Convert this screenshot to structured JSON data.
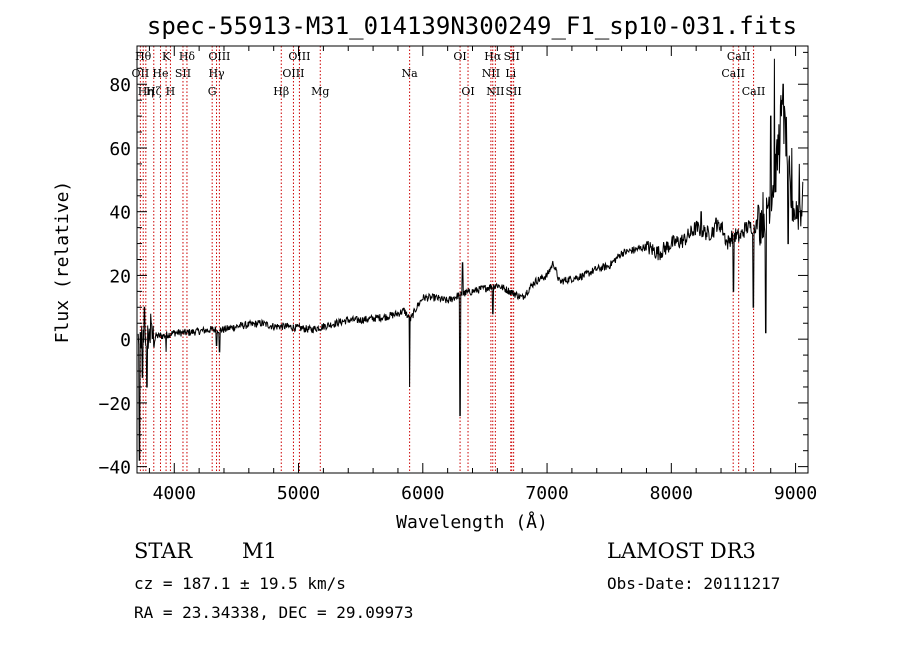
{
  "chart_data": {
    "type": "line",
    "title": "spec-55913-M31_014139N300249_F1_sp10-031.fits",
    "xlabel": "Wavelength (Å)",
    "ylabel": "Flux (relative)",
    "xlim": [
      3700,
      9100
    ],
    "ylim": [
      -42,
      92
    ],
    "xticks": [
      4000,
      5000,
      6000,
      7000,
      8000,
      9000
    ],
    "yticks": [
      -40,
      -20,
      0,
      20,
      40,
      60,
      80
    ],
    "line_color": "#000000",
    "marker_color": "#cc0000",
    "lines": [
      {
        "label": "Hθ",
        "wave": 3750,
        "row": 0
      },
      {
        "label": "OII",
        "wave": 3727,
        "row": 1
      },
      {
        "label": "Hη",
        "wave": 3771,
        "row": 2
      },
      {
        "label": "He",
        "wave": 3889,
        "row": 1
      },
      {
        "label": "Hζ",
        "wave": 3835,
        "row": 2
      },
      {
        "label": "K",
        "wave": 3934,
        "row": 0
      },
      {
        "label": "H",
        "wave": 3969,
        "row": 2
      },
      {
        "label": "SII",
        "wave": 4070,
        "row": 1
      },
      {
        "label": "Hδ",
        "wave": 4102,
        "row": 0
      },
      {
        "label": "OIII",
        "wave": 4363,
        "row": 0
      },
      {
        "label": "Hγ",
        "wave": 4340,
        "row": 1
      },
      {
        "label": "G",
        "wave": 4305,
        "row": 2
      },
      {
        "label": "Hβ",
        "wave": 4861,
        "row": 2
      },
      {
        "label": "OIII",
        "wave": 5007,
        "row": 0
      },
      {
        "label": "OIII",
        "wave": 4959,
        "row": 1
      },
      {
        "label": "Mg",
        "wave": 5175,
        "row": 2
      },
      {
        "label": "Na",
        "wave": 5894,
        "row": 1
      },
      {
        "label": "OI",
        "wave": 6300,
        "row": 0
      },
      {
        "label": "OI",
        "wave": 6364,
        "row": 2
      },
      {
        "label": "Hα",
        "wave": 6563,
        "row": 0
      },
      {
        "label": "NII",
        "wave": 6548,
        "row": 1
      },
      {
        "label": "NII",
        "wave": 6584,
        "row": 2
      },
      {
        "label": "SII",
        "wave": 6716,
        "row": 0
      },
      {
        "label": "Li",
        "wave": 6708,
        "row": 1
      },
      {
        "label": "SII",
        "wave": 6731,
        "row": 2
      },
      {
        "label": "CaII",
        "wave": 8542,
        "row": 0
      },
      {
        "label": "CaII",
        "wave": 8498,
        "row": 1
      },
      {
        "label": "CaII",
        "wave": 8662,
        "row": 2
      }
    ],
    "spectrum_continuum": [
      [
        3700,
        0
      ],
      [
        3800,
        1
      ],
      [
        3900,
        1
      ],
      [
        4000,
        2
      ],
      [
        4100,
        2
      ],
      [
        4200,
        2.5
      ],
      [
        4300,
        3
      ],
      [
        4400,
        3
      ],
      [
        4500,
        4
      ],
      [
        4600,
        4.5
      ],
      [
        4700,
        5
      ],
      [
        4800,
        4
      ],
      [
        4900,
        4
      ],
      [
        5000,
        3.5
      ],
      [
        5100,
        3
      ],
      [
        5200,
        4
      ],
      [
        5300,
        5
      ],
      [
        5400,
        6
      ],
      [
        5500,
        6
      ],
      [
        5600,
        6.5
      ],
      [
        5700,
        7
      ],
      [
        5800,
        8
      ],
      [
        5850,
        9
      ],
      [
        5900,
        6
      ],
      [
        5950,
        10
      ],
      [
        6000,
        13
      ],
      [
        6100,
        13
      ],
      [
        6200,
        12
      ],
      [
        6300,
        14
      ],
      [
        6400,
        15
      ],
      [
        6500,
        16
      ],
      [
        6600,
        17
      ],
      [
        6700,
        15
      ],
      [
        6800,
        13
      ],
      [
        6900,
        18
      ],
      [
        7000,
        20
      ],
      [
        7050,
        24
      ],
      [
        7100,
        18
      ],
      [
        7200,
        19
      ],
      [
        7300,
        20
      ],
      [
        7400,
        22
      ],
      [
        7500,
        23
      ],
      [
        7600,
        27
      ],
      [
        7700,
        28
      ],
      [
        7800,
        29
      ],
      [
        7900,
        27
      ],
      [
        8000,
        30
      ],
      [
        8100,
        31
      ],
      [
        8200,
        35
      ],
      [
        8300,
        33
      ],
      [
        8400,
        36
      ],
      [
        8450,
        30
      ],
      [
        8500,
        33
      ],
      [
        8550,
        32
      ],
      [
        8600,
        35
      ],
      [
        8700,
        36
      ],
      [
        8750,
        40
      ],
      [
        8800,
        45
      ],
      [
        8850,
        55
      ],
      [
        8880,
        70
      ],
      [
        8920,
        65
      ],
      [
        8960,
        45
      ],
      [
        9000,
        40
      ],
      [
        9050,
        42
      ]
    ],
    "spectrum_features": [
      {
        "wave": 3720,
        "flux": -38
      },
      {
        "wave": 3745,
        "flux": -12
      },
      {
        "wave": 3760,
        "flux": 10
      },
      {
        "wave": 3780,
        "flux": -15
      },
      {
        "wave": 3810,
        "flux": 8
      },
      {
        "wave": 3934,
        "flux": -4
      },
      {
        "wave": 4340,
        "flux": -2
      },
      {
        "wave": 4365,
        "flux": -4
      },
      {
        "wave": 5894,
        "flux": -15
      },
      {
        "wave": 6300,
        "flux": -24
      },
      {
        "wave": 6320,
        "flux": 24
      },
      {
        "wave": 6563,
        "flux": 8
      },
      {
        "wave": 8240,
        "flux": 40
      },
      {
        "wave": 8360,
        "flux": 38
      },
      {
        "wave": 8500,
        "flux": 15
      },
      {
        "wave": 8660,
        "flux": 10
      },
      {
        "wave": 8700,
        "flux": 42
      },
      {
        "wave": 8760,
        "flux": 2
      },
      {
        "wave": 8800,
        "flux": 70
      },
      {
        "wave": 8830,
        "flux": 88
      },
      {
        "wave": 8870,
        "flux": 52
      },
      {
        "wave": 8900,
        "flux": 80
      },
      {
        "wave": 8940,
        "flux": 30
      },
      {
        "wave": 8970,
        "flux": 60
      },
      {
        "wave": 9000,
        "flux": 38
      },
      {
        "wave": 9030,
        "flux": 55
      }
    ]
  },
  "info": {
    "object_class": "STAR",
    "subclass": "M1",
    "survey": "LAMOST DR3",
    "cz": "cz = 187.1 ± 19.5 km/s",
    "obs_date": "Obs-Date: 20111217",
    "coords": "RA =  23.34338, DEC =  29.09973"
  }
}
